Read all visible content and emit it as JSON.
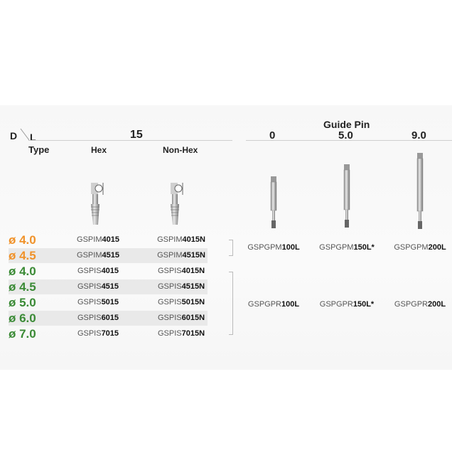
{
  "header": {
    "d_label": "D",
    "l_label": "L",
    "type_label": "Type",
    "length_value": "15",
    "hex_label": "Hex",
    "nonhex_label": "Non-Hex",
    "guide_pin_label": "Guide Pin",
    "guide_pin_columns": [
      "0",
      "5.0",
      "9.0"
    ]
  },
  "colors": {
    "orange": "#f0922a",
    "green": "#3a8a35"
  },
  "rows": [
    {
      "diameter": "ø 4.0",
      "color": "orange",
      "hex_prefix": "GSPIM",
      "hex_suffix": "4015",
      "nonhex_prefix": "GSPIM",
      "nonhex_suffix": "4015N"
    },
    {
      "diameter": "ø 4.5",
      "color": "orange",
      "hex_prefix": "GSPIM",
      "hex_suffix": "4515",
      "nonhex_prefix": "GSPIM",
      "nonhex_suffix": "4515N"
    },
    {
      "diameter": "ø 4.0",
      "color": "green",
      "hex_prefix": "GSPIS",
      "hex_suffix": "4015",
      "nonhex_prefix": "GSPIS",
      "nonhex_suffix": "4015N"
    },
    {
      "diameter": "ø 4.5",
      "color": "green",
      "hex_prefix": "GSPIS",
      "hex_suffix": "4515",
      "nonhex_prefix": "GSPIS",
      "nonhex_suffix": "4515N"
    },
    {
      "diameter": "ø 5.0",
      "color": "green",
      "hex_prefix": "GSPIS",
      "hex_suffix": "5015",
      "nonhex_prefix": "GSPIS",
      "nonhex_suffix": "5015N"
    },
    {
      "diameter": "ø 6.0",
      "color": "green",
      "hex_prefix": "GSPIS",
      "hex_suffix": "6015",
      "nonhex_prefix": "GSPIS",
      "nonhex_suffix": "6015N"
    },
    {
      "diameter": "ø 7.0",
      "color": "green",
      "hex_prefix": "GSPIS",
      "hex_suffix": "7015",
      "nonhex_prefix": "GSPIS",
      "nonhex_suffix": "7015N"
    }
  ],
  "guide_pins": {
    "gpm": [
      {
        "prefix": "GSPGPM",
        "suffix": "100L"
      },
      {
        "prefix": "GSPGPM",
        "suffix": "150L*"
      },
      {
        "prefix": "GSPGPM",
        "suffix": "200L"
      }
    ],
    "gpr": [
      {
        "prefix": "GSPGPR",
        "suffix": "100L"
      },
      {
        "prefix": "GSPGPR",
        "suffix": "150L*"
      },
      {
        "prefix": "GSPGPR",
        "suffix": "200L"
      }
    ]
  }
}
